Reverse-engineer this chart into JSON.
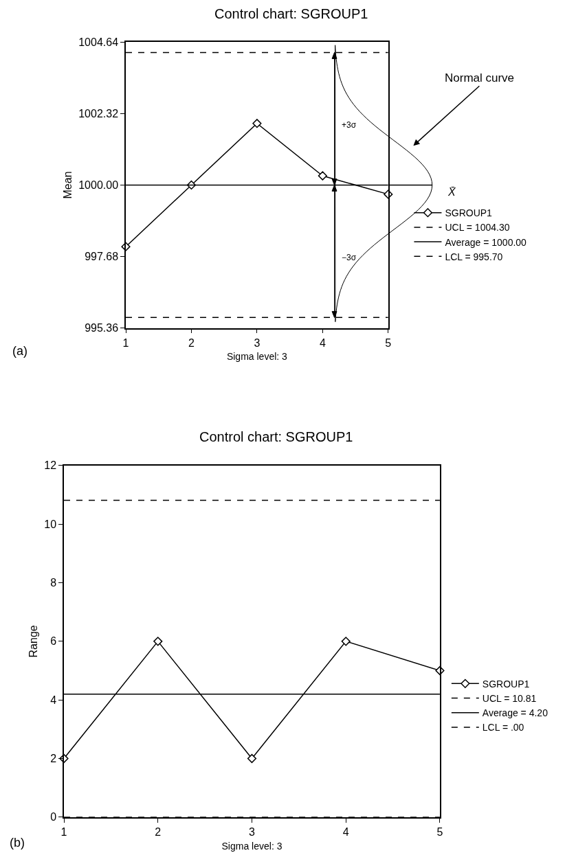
{
  "chart_data": [
    {
      "type": "line",
      "title": "Control chart: SGROUP1",
      "xlabel": "Sigma level: 3",
      "ylabel": "Mean",
      "x": [
        1,
        2,
        3,
        4,
        5
      ],
      "series": [
        {
          "name": "SGROUP1",
          "color": "#000000",
          "values": [
            998.0,
            1000.0,
            1002.0,
            1000.3,
            999.7
          ]
        }
      ],
      "xlim": [
        1,
        5
      ],
      "xticks": [
        1,
        2,
        3,
        4,
        5
      ],
      "ylim": [
        995.36,
        1004.64
      ],
      "yticks": [
        995.36,
        997.68,
        {
          "value": 1000,
          "label": "1000.00"
        },
        1002.32,
        1004.64
      ],
      "ref_lines": [
        {
          "axis": "y",
          "value": 1004.3,
          "label": "UCL = 1004.30",
          "line_style": "dashed",
          "color": "#000000"
        },
        {
          "axis": "y",
          "value": 1000.0,
          "label": "Average = 1000.00",
          "line_style": "solid",
          "color": "#000000"
        },
        {
          "axis": "y",
          "value": 995.7,
          "label": "LCL = 995.70",
          "line_style": "dashed",
          "color": "#000000"
        }
      ],
      "annotations": [
        "(a)",
        "Normal curve",
        "+3σ",
        "−3σ",
        "X̄"
      ],
      "marker": "diamond",
      "legend": "right"
    },
    {
      "type": "line",
      "title": "Control chart: SGROUP1",
      "xlabel": "Sigma level: 3",
      "ylabel": "Range",
      "x": [
        1,
        2,
        3,
        4,
        5
      ],
      "series": [
        {
          "name": "SGROUP1",
          "color": "#000000",
          "values": [
            2,
            6,
            2,
            6,
            5
          ]
        }
      ],
      "xlim": [
        1,
        5
      ],
      "xticks": [
        1,
        2,
        3,
        4,
        5
      ],
      "ylim": [
        0,
        12
      ],
      "yticks": [
        0,
        2,
        4,
        6,
        8,
        10,
        12
      ],
      "ref_lines": [
        {
          "axis": "y",
          "value": 10.81,
          "label": "UCL = 10.81",
          "line_style": "dashed",
          "color": "#000000"
        },
        {
          "axis": "y",
          "value": 4.2,
          "label": "Average = 4.20",
          "line_style": "solid",
          "color": "#000000"
        },
        {
          "axis": "y",
          "value": 0,
          "label": "LCL = .00",
          "line_style": "dashed",
          "color": "#000000"
        }
      ],
      "annotations": [
        "(b)"
      ],
      "marker": "diamond",
      "legend": "right"
    }
  ]
}
